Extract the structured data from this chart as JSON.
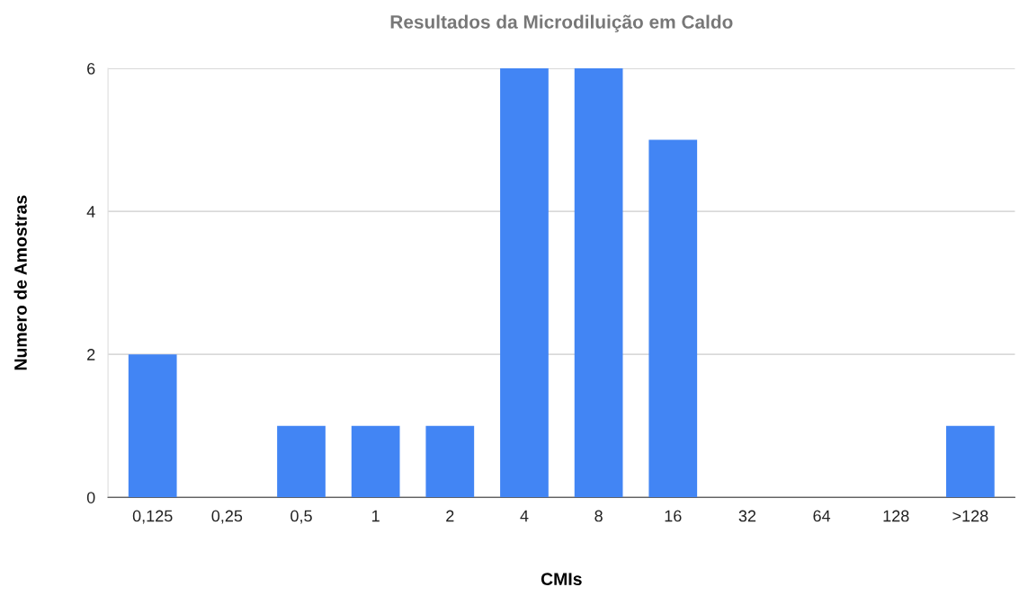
{
  "chart_data": {
    "type": "bar",
    "title": "Resultados da Microdiluição em Caldo",
    "xlabel": "CMIs",
    "ylabel": "Numero de Amostras",
    "categories": [
      "0,125",
      "0,25",
      "0,5",
      "1",
      "2",
      "4",
      "8",
      "16",
      "32",
      "64",
      "128",
      ">128"
    ],
    "values": [
      2,
      0,
      1,
      1,
      1,
      6,
      6,
      5,
      0,
      0,
      0,
      1
    ],
    "color": "#4285f4",
    "ylim": [
      0,
      6
    ],
    "yticks": [
      0,
      2,
      4,
      6
    ],
    "grid": "y"
  }
}
